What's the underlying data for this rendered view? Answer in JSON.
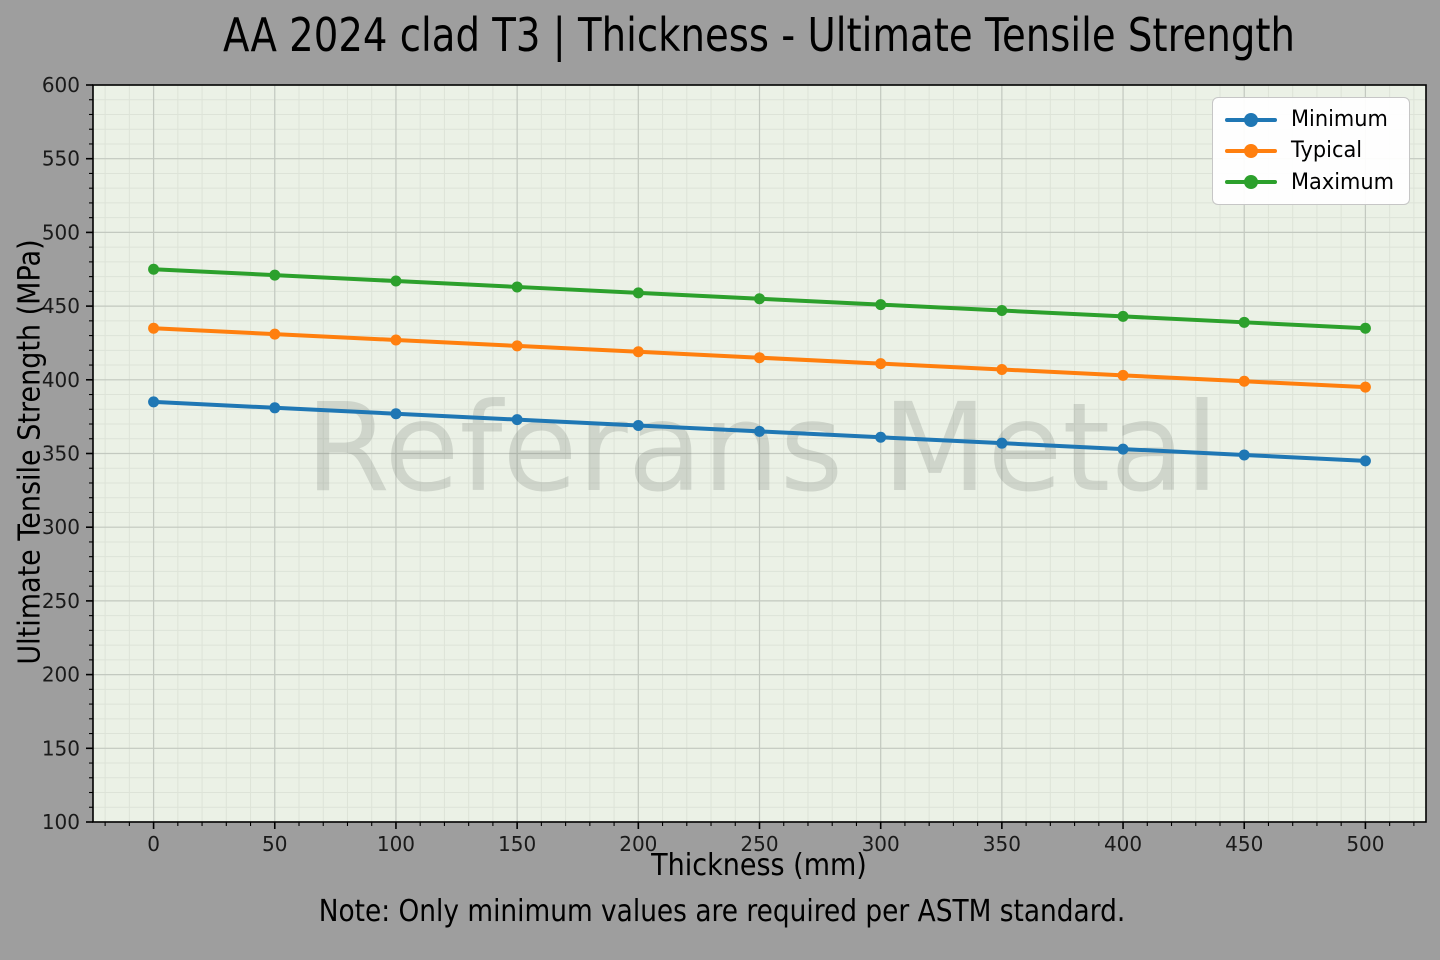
{
  "chart_data": {
    "type": "line",
    "title": "AA 2024 clad T3 | Thickness - Ultimate Tensile Strength",
    "xlabel": "Thickness (mm)",
    "ylabel": "Ultimate Tensile Strength (MPa)",
    "note": "Note: Only minimum values are required per ASTM standard.",
    "watermark": "Referans Metal",
    "x": [
      0,
      50,
      100,
      150,
      200,
      250,
      300,
      350,
      400,
      450,
      500
    ],
    "series": [
      {
        "name": "Minimum",
        "color": "#1f77b4",
        "values": [
          385,
          381,
          377,
          373,
          369,
          365,
          361,
          357,
          353,
          349,
          345
        ]
      },
      {
        "name": "Typical",
        "color": "#ff7f0e",
        "values": [
          435,
          431,
          427,
          423,
          419,
          415,
          411,
          407,
          403,
          399,
          395
        ]
      },
      {
        "name": "Maximum",
        "color": "#2ca02c",
        "values": [
          475,
          471,
          467,
          463,
          459,
          455,
          451,
          447,
          443,
          439,
          435
        ]
      }
    ],
    "xlim": [
      -25,
      525
    ],
    "ylim": [
      100,
      600
    ],
    "xticks": [
      0,
      50,
      100,
      150,
      200,
      250,
      300,
      350,
      400,
      450,
      500
    ],
    "yticks": [
      100,
      150,
      200,
      250,
      300,
      350,
      400,
      450,
      500,
      550,
      600
    ],
    "xminor_step": 10,
    "yminor_step": 10,
    "grid": "major+minor",
    "legend_position": "upper-right",
    "colors": {
      "figure_bg": "#9e9e9e",
      "plot_bg": "#ebf1e6",
      "grid_major": "#c3c9c0",
      "grid_minor": "#dde3d8",
      "spine": "#000000",
      "tick_label": "#1a1a1a",
      "watermark": "#6e766e"
    }
  }
}
